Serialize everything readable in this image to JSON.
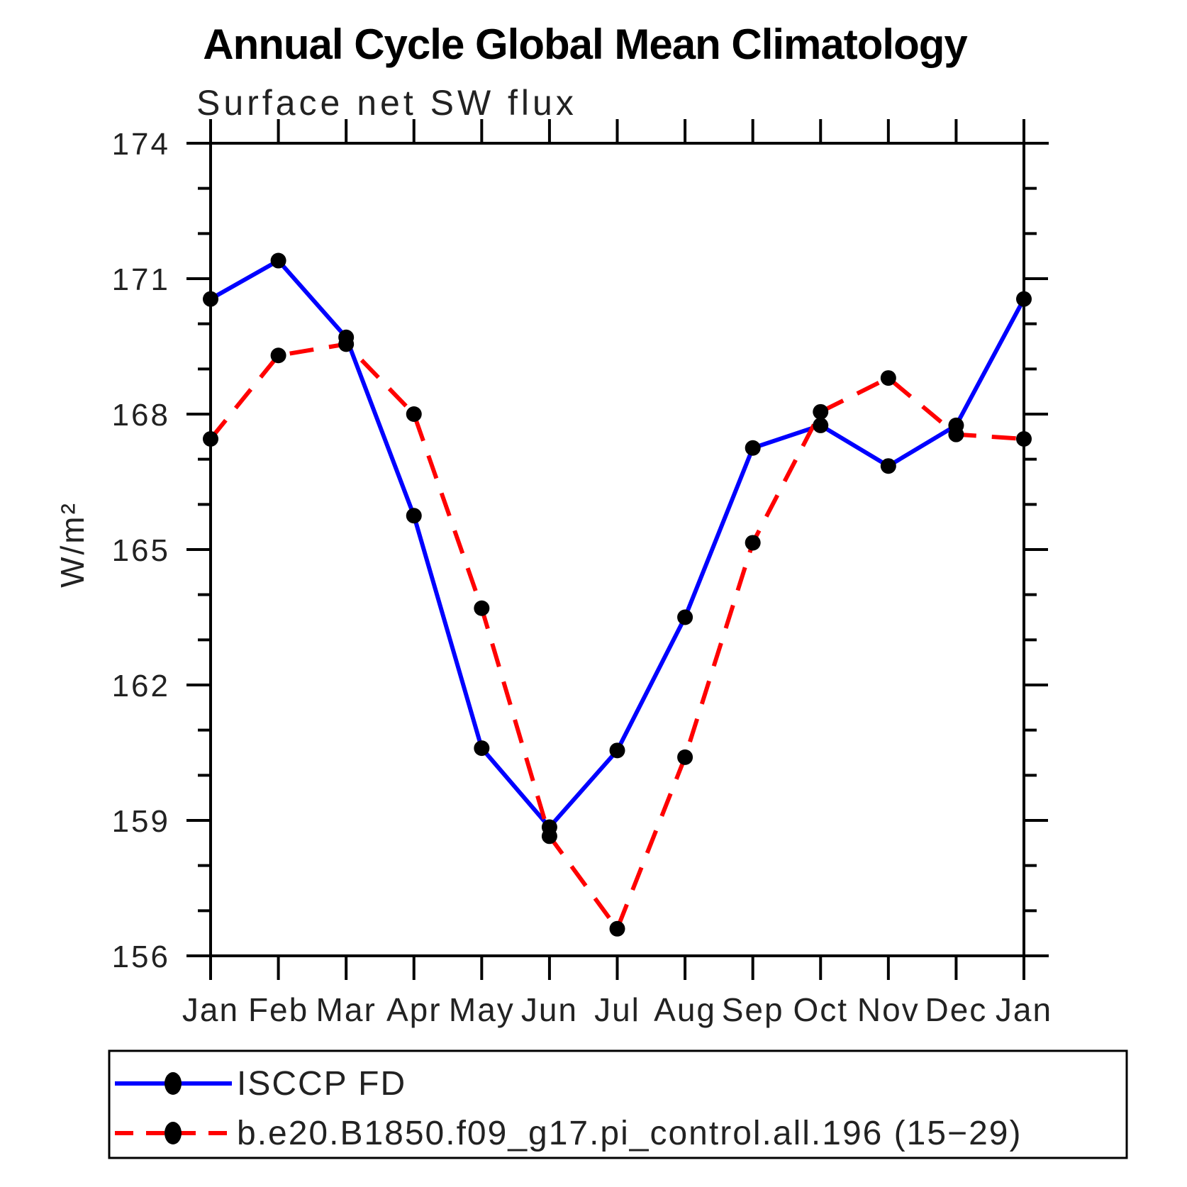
{
  "chart_data": {
    "type": "line",
    "title": "Annual Cycle Global Mean Climatology",
    "subtitle": "Surface net SW flux",
    "ylabel": "W/m²",
    "xlabel": "",
    "categories": [
      "Jan",
      "Feb",
      "Mar",
      "Apr",
      "May",
      "Jun",
      "Jul",
      "Aug",
      "Sep",
      "Oct",
      "Nov",
      "Dec",
      "Jan"
    ],
    "ylim": [
      156,
      174
    ],
    "ytick_labels": [
      156,
      159,
      162,
      165,
      168,
      171,
      174
    ],
    "ytick_major_interval": 3,
    "ytick_minor_interval": 1,
    "grid": false,
    "legend_position": "bottom",
    "marker_color": "#000000",
    "axis_color": "#000000",
    "series": [
      {
        "name": "ISCCP FD",
        "color": "#0000ff",
        "style": "solid",
        "values": [
          170.55,
          171.4,
          169.7,
          165.75,
          160.6,
          158.85,
          160.55,
          163.5,
          167.25,
          167.75,
          166.85,
          167.75,
          170.55
        ]
      },
      {
        "name": "b.e20.B1850.f09_g17.pi_control.all.196 (15−29)",
        "color": "#ff0000",
        "style": "dashed",
        "values": [
          167.45,
          169.3,
          169.55,
          168.0,
          163.7,
          158.65,
          156.6,
          160.4,
          165.15,
          168.05,
          168.8,
          167.55,
          167.45
        ]
      }
    ]
  }
}
